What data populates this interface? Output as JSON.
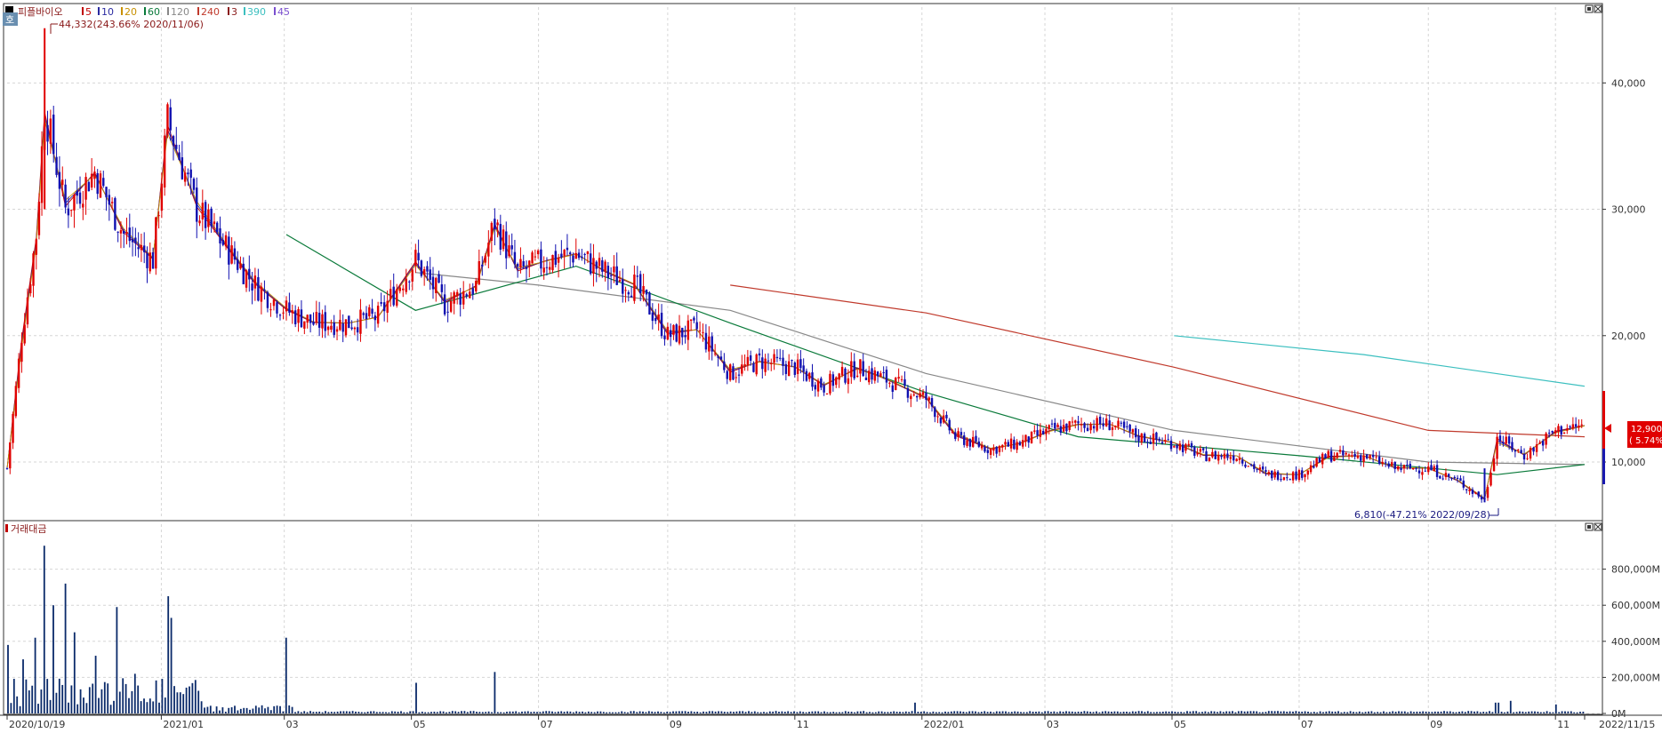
{
  "price_panel": {
    "stock_name": "피플바이오",
    "badge": "호",
    "ma_legend": [
      {
        "label": "5",
        "color": "#c00000"
      },
      {
        "label": "10",
        "color": "#2a2aa0"
      },
      {
        "label": "20",
        "color": "#c89000"
      },
      {
        "label": "60",
        "color": "#0a7a3a"
      },
      {
        "label": "120",
        "color": "#888888"
      },
      {
        "label": "240",
        "color": "#c0392b"
      },
      {
        "label": "3",
        "color": "#8a1a1a"
      },
      {
        "label": "390",
        "color": "#3bbfbf"
      },
      {
        "label": "45",
        "color": "#7a4fcf"
      }
    ],
    "high_annotation": "44,332(243.66% 2020/11/06)",
    "low_annotation": "6,810(-47.21% 2022/09/28)",
    "current_price": "12,900",
    "current_change": "( 5.74%)"
  },
  "volume_panel": {
    "title": "거래대금"
  },
  "colors": {
    "up": "#e00000",
    "down": "#1010b0",
    "volume": "#0a2a6a",
    "price_tag_bg": "#e00000"
  },
  "chart_data": [
    {
      "type": "candlestick",
      "title": "피플바이오",
      "x_labels": [
        "2020/10/19",
        "2021/01",
        "03",
        "05",
        "07",
        "09",
        "11",
        "2022/01",
        "03",
        "05",
        "07",
        "09",
        "11",
        "2022/11/15"
      ],
      "y_ticks": [
        "10,000",
        "20,000",
        "30,000",
        "40,000"
      ],
      "ylim": [
        5500,
        46000
      ],
      "grid": true,
      "close_series": [
        [
          "2020/10/19",
          9500
        ],
        [
          "2020/10/26",
          20000
        ],
        [
          "2020/11/02",
          28000
        ],
        [
          "2020/11/06",
          38000
        ],
        [
          "2020/11/16",
          30000
        ],
        [
          "2020/11/30",
          33000
        ],
        [
          "2020/12/14",
          28000
        ],
        [
          "2020/12/28",
          26000
        ],
        [
          "2021/01/04",
          37000
        ],
        [
          "2021/01/18",
          30000
        ],
        [
          "2021/02/01",
          27000
        ],
        [
          "2021/02/15",
          24000
        ],
        [
          "2021/03/02",
          22000
        ],
        [
          "2021/03/15",
          21000
        ],
        [
          "2021/04/01",
          21000
        ],
        [
          "2021/04/15",
          21500
        ],
        [
          "2021/05/03",
          26000
        ],
        [
          "2021/05/17",
          22500
        ],
        [
          "2021/06/01",
          24000
        ],
        [
          "2021/06/10",
          29000
        ],
        [
          "2021/06/21",
          25000
        ],
        [
          "2021/07/05",
          26000
        ],
        [
          "2021/07/19",
          26500
        ],
        [
          "2021/08/02",
          25000
        ],
        [
          "2021/08/16",
          24000
        ],
        [
          "2021/09/01",
          20000
        ],
        [
          "2021/09/15",
          20500
        ],
        [
          "2021/10/01",
          17000
        ],
        [
          "2021/10/15",
          18000
        ],
        [
          "2021/11/01",
          17500
        ],
        [
          "2021/11/15",
          16000
        ],
        [
          "2021/12/01",
          17500
        ],
        [
          "2021/12/15",
          16500
        ],
        [
          "2022/01/03",
          15000
        ],
        [
          "2022/01/17",
          12000
        ],
        [
          "2022/02/03",
          11000
        ],
        [
          "2022/02/17",
          11500
        ],
        [
          "2022/03/03",
          12500
        ],
        [
          "2022/03/17",
          13000
        ],
        [
          "2022/04/01",
          13000
        ],
        [
          "2022/04/15",
          12000
        ],
        [
          "2022/05/02",
          11500
        ],
        [
          "2022/05/16",
          10500
        ],
        [
          "2022/06/01",
          10500
        ],
        [
          "2022/06/15",
          9000
        ],
        [
          "2022/07/01",
          9000
        ],
        [
          "2022/07/15",
          10500
        ],
        [
          "2022/08/01",
          10500
        ],
        [
          "2022/08/16",
          9500
        ],
        [
          "2022/09/01",
          9500
        ],
        [
          "2022/09/15",
          8500
        ],
        [
          "2022/09/28",
          7000
        ],
        [
          "2022/10/04",
          12000
        ],
        [
          "2022/10/17",
          10500
        ],
        [
          "2022/11/01",
          12500
        ],
        [
          "2022/11/15",
          12900
        ]
      ],
      "high": {
        "date": "2020/11/06",
        "value": 44332
      },
      "low": {
        "date": "2022/09/28",
        "value": 6810
      },
      "moving_averages": [
        {
          "name": "240",
          "points": [
            [
              "2021/10/01",
              24000
            ],
            [
              "2022/01/03",
              21800
            ],
            [
              "2022/05/02",
              17500
            ],
            [
              "2022/09/01",
              12500
            ],
            [
              "2022/11/15",
              12000
            ]
          ]
        },
        {
          "name": "390",
          "points": [
            [
              "2022/05/02",
              20000
            ],
            [
              "2022/08/01",
              18500
            ],
            [
              "2022/11/15",
              16000
            ]
          ]
        },
        {
          "name": "120",
          "points": [
            [
              "2021/05/03",
              25000
            ],
            [
              "2021/07/01",
              24000
            ],
            [
              "2021/10/01",
              22000
            ],
            [
              "2022/01/03",
              17000
            ],
            [
              "2022/05/02",
              12500
            ],
            [
              "2022/09/01",
              10000
            ],
            [
              "2022/11/15",
              9800
            ]
          ]
        },
        {
          "name": "60",
          "points": [
            [
              "2021/03/02",
              28000
            ],
            [
              "2021/05/03",
              22000
            ],
            [
              "2021/07/19",
              25500
            ],
            [
              "2021/10/01",
              21000
            ],
            [
              "2022/01/03",
              15500
            ],
            [
              "2022/03/17",
              12000
            ],
            [
              "2022/07/01",
              10500
            ],
            [
              "2022/10/04",
              9000
            ],
            [
              "2022/11/15",
              9800
            ]
          ]
        }
      ]
    },
    {
      "type": "bar",
      "title": "거래대금",
      "y_ticks": [
        "0M",
        "200,000M",
        "400,000M",
        "600,000M",
        "800,000M"
      ],
      "ylim": [
        0,
        1000000
      ],
      "unit": "M",
      "peaks": [
        [
          "2020/10/19",
          380000
        ],
        [
          "2020/10/26",
          300000
        ],
        [
          "2020/11/02",
          420000
        ],
        [
          "2020/11/06",
          930000
        ],
        [
          "2020/11/10",
          600000
        ],
        [
          "2020/11/16",
          720000
        ],
        [
          "2020/11/20",
          450000
        ],
        [
          "2020/12/01",
          320000
        ],
        [
          "2020/12/10",
          590000
        ],
        [
          "2020/12/20",
          220000
        ],
        [
          "2021/01/04",
          650000
        ],
        [
          "2021/01/06",
          530000
        ],
        [
          "2021/01/15",
          150000
        ],
        [
          "2021/03/02",
          420000
        ],
        [
          "2021/05/03",
          170000
        ],
        [
          "2021/06/10",
          230000
        ],
        [
          "2021/12/28",
          60000
        ],
        [
          "2022/10/04",
          60000
        ],
        [
          "2022/10/10",
          70000
        ],
        [
          "2022/11/01",
          50000
        ]
      ]
    }
  ]
}
